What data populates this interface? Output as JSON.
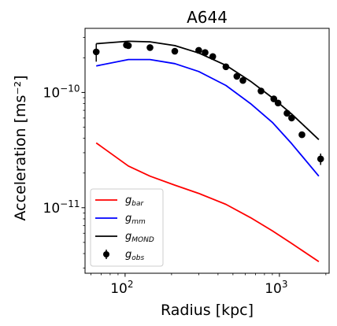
{
  "chart_data": {
    "type": "line",
    "title": "A644",
    "xlabel": "Radius [kpc]",
    "ylabel": "Acceleration [ms⁻²]",
    "xscale": "log",
    "yscale": "log",
    "xlim": [
      55,
      2100
    ],
    "ylim": [
      2.7e-12,
      3.6e-10
    ],
    "x_ticks": [
      {
        "value": 100,
        "base": "10",
        "exp": "2"
      },
      {
        "value": 1000,
        "base": "10",
        "exp": "3"
      }
    ],
    "y_ticks": [
      {
        "value": 1e-11,
        "base": "10",
        "exp": "−11"
      },
      {
        "value": 1e-10,
        "base": "10",
        "exp": "−10"
      }
    ],
    "legend": {
      "position": "lower-left",
      "entries": [
        {
          "series": "g_bar",
          "main": "g",
          "sub": "bar"
        },
        {
          "series": "g_mm",
          "main": "g",
          "sub": "mm"
        },
        {
          "series": "g_MOND",
          "main": "g",
          "sub": "MOND"
        },
        {
          "series": "g_obs",
          "main": "g",
          "sub": "obs"
        }
      ]
    },
    "series": [
      {
        "name": "g_bar",
        "kind": "line",
        "color": "#ff0000",
        "x": [
          65,
          105,
          145,
          210,
          300,
          450,
          650,
          900,
          1200,
          1800
        ],
        "y": [
          3.65e-11,
          2.3e-11,
          1.88e-11,
          1.57e-11,
          1.33e-11,
          1.07e-11,
          8.2e-12,
          6.3e-12,
          4.9e-12,
          3.4e-12
        ]
      },
      {
        "name": "g_mm",
        "kind": "line",
        "color": "#0000ff",
        "x": [
          65,
          105,
          145,
          210,
          300,
          450,
          650,
          900,
          1200,
          1800
        ],
        "y": [
          1.7e-10,
          1.93e-10,
          1.93e-10,
          1.78e-10,
          1.52e-10,
          1.15e-10,
          8e-11,
          5.5e-11,
          3.6e-11,
          1.88e-11
        ]
      },
      {
        "name": "g_MOND",
        "kind": "line",
        "color": "#000000",
        "x": [
          65,
          105,
          145,
          210,
          300,
          450,
          650,
          900,
          1200,
          1800
        ],
        "y": [
          2.65e-10,
          2.78e-10,
          2.75e-10,
          2.55e-10,
          2.2e-10,
          1.72e-10,
          1.25e-10,
          9e-11,
          6.5e-11,
          3.9e-11
        ]
      },
      {
        "name": "g_obs",
        "kind": "errorbar",
        "color": "#000000",
        "x": [
          65,
          102,
          105,
          145,
          210,
          300,
          330,
          370,
          450,
          530,
          580,
          760,
          920,
          980,
          1120,
          1200,
          1400,
          1850
        ],
        "y": [
          2.25e-10,
          2.58e-10,
          2.55e-10,
          2.45e-10,
          2.28e-10,
          2.32e-10,
          2.22e-10,
          2.05e-10,
          1.67e-10,
          1.38e-10,
          1.27e-10,
          1.03e-10,
          8.8e-11,
          8.1e-11,
          6.6e-11,
          6e-11,
          4.3e-11,
          2.65e-11
        ],
        "yerr": [
          4e-11,
          0,
          0,
          0,
          0,
          0,
          0,
          0,
          0,
          0,
          0,
          0,
          0,
          0,
          0,
          0,
          0,
          3e-12
        ]
      }
    ]
  }
}
